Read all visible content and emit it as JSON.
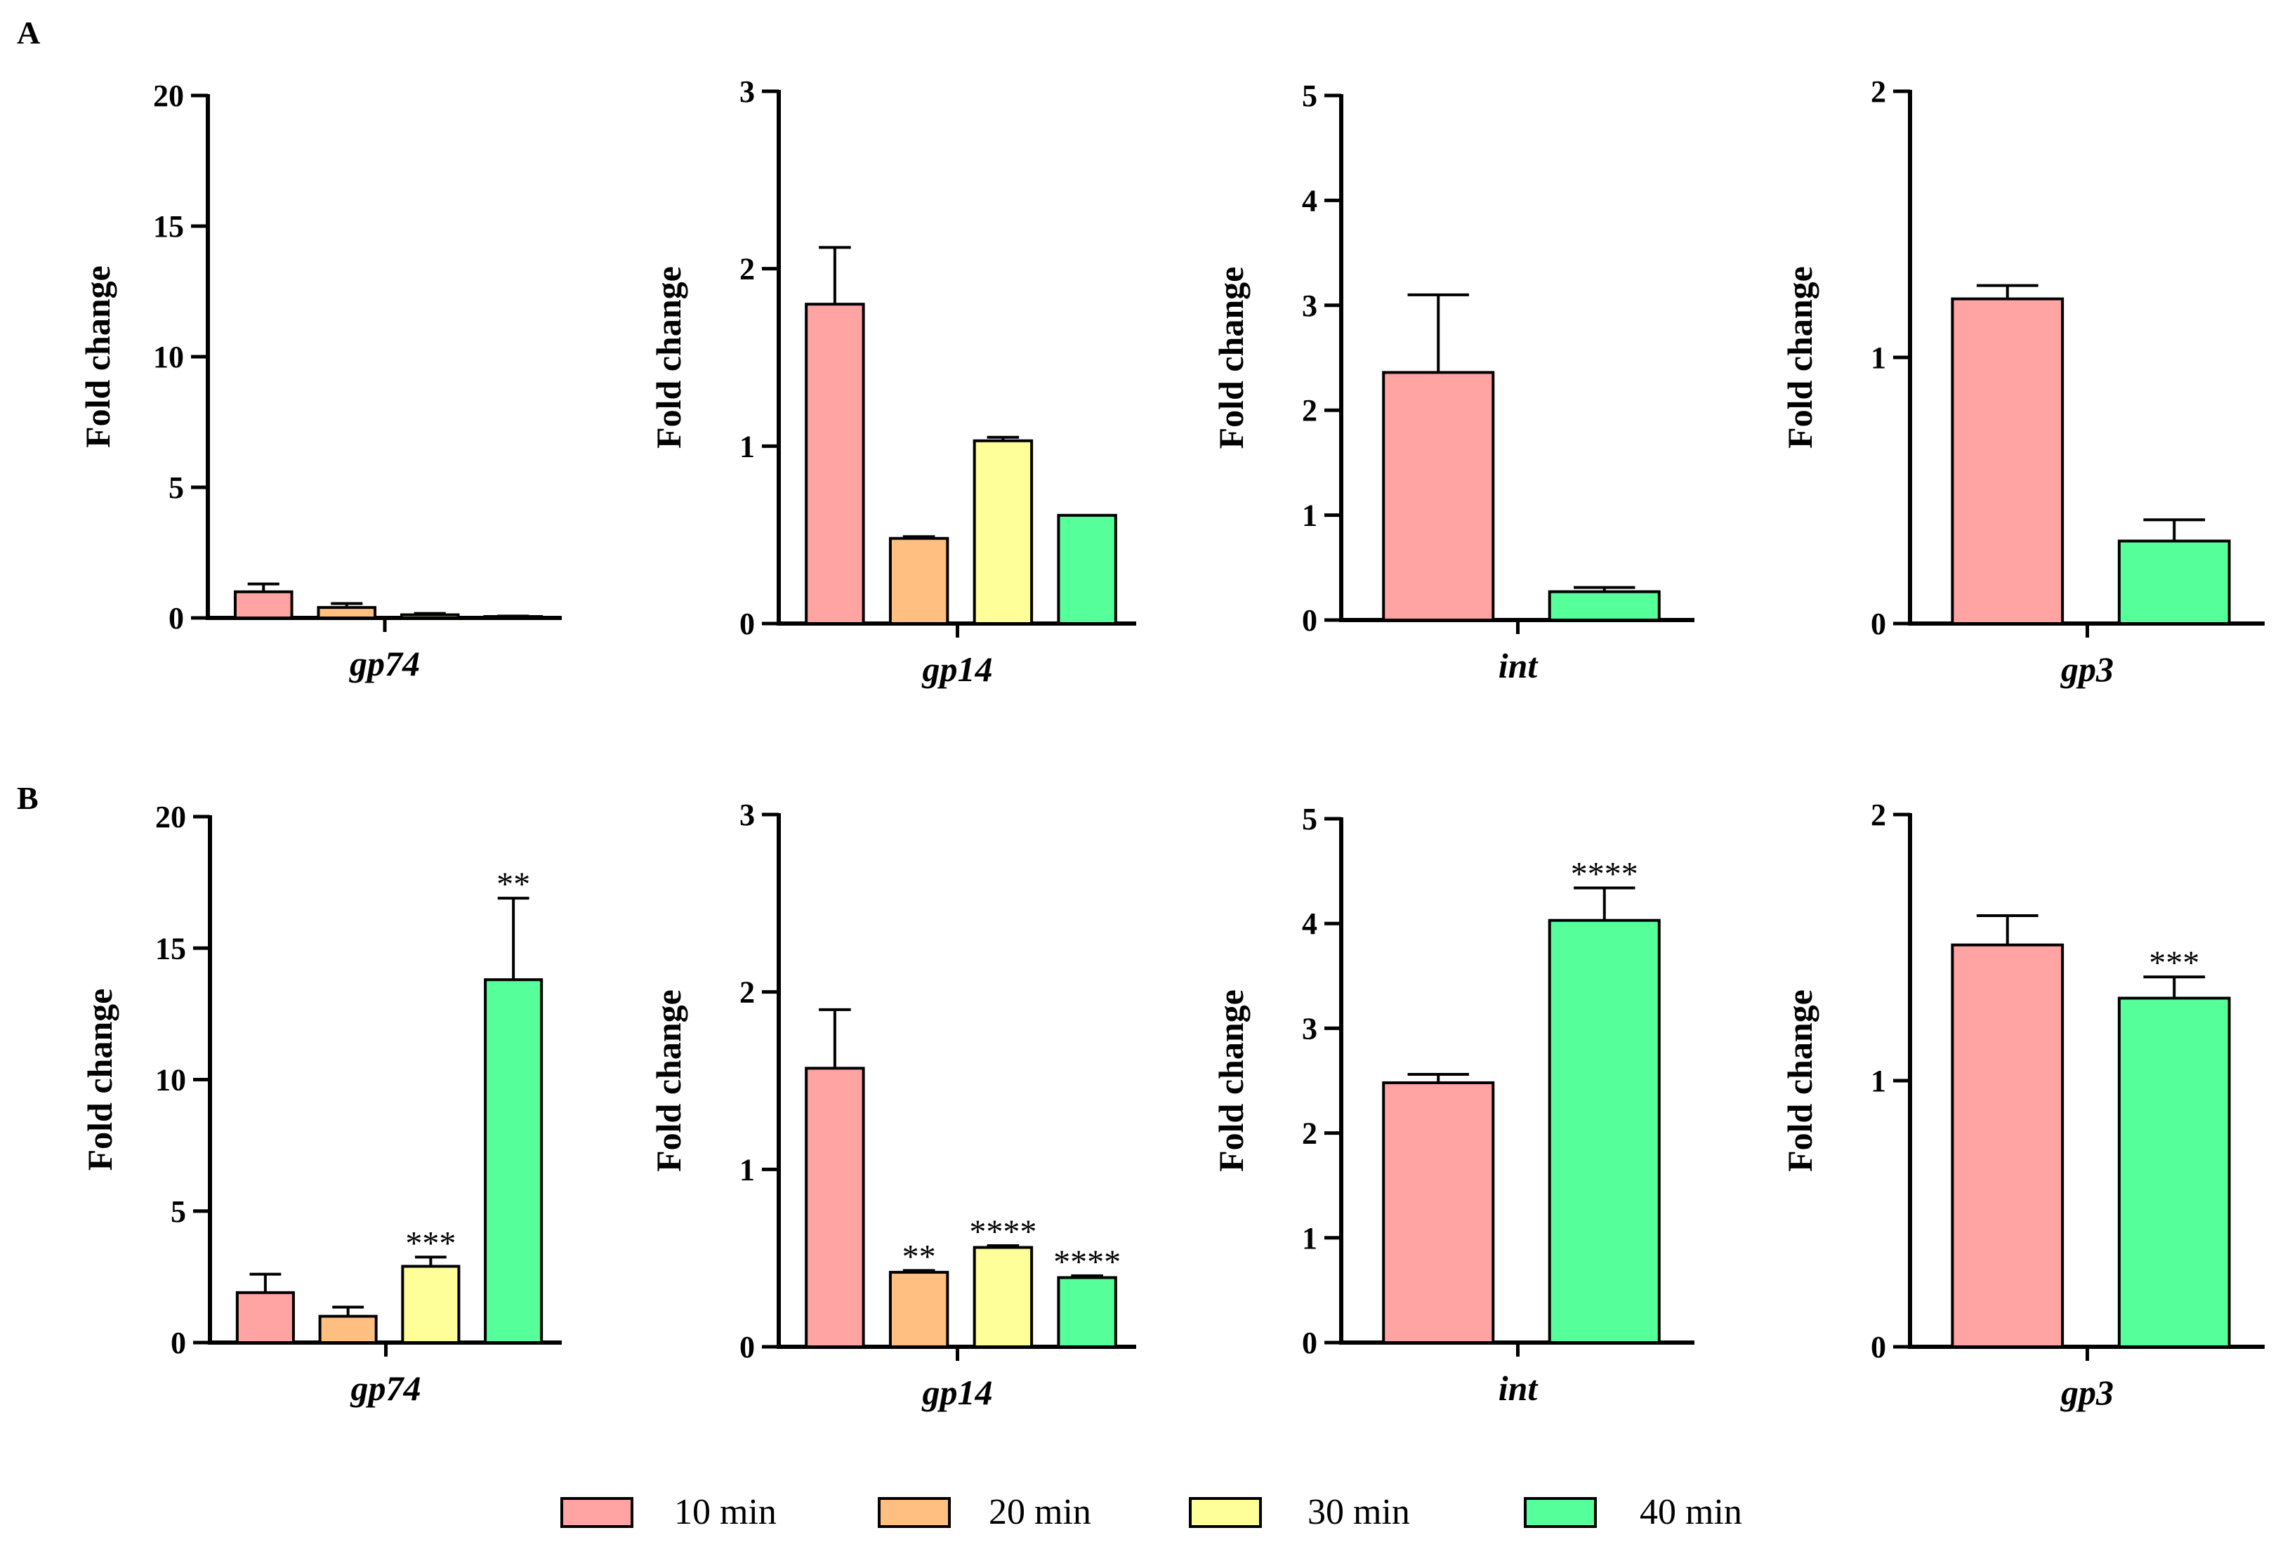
{
  "figure": {
    "panel_labels": [
      "A",
      "B"
    ]
  },
  "legend": {
    "items": [
      {
        "label": "10 min",
        "color": "#FFA3A3"
      },
      {
        "label": "20 min",
        "color": "#FFBF80"
      },
      {
        "label": "30 min",
        "color": "#FFFF99"
      },
      {
        "label": "40 min",
        "color": "#55FF99"
      }
    ]
  },
  "chart_data": [
    {
      "panel": "A",
      "type": "bar",
      "title": "",
      "xlabel": "gp74",
      "ylabel": "Fold change",
      "ylim": [
        0,
        20
      ],
      "yticks": [
        0,
        5,
        10,
        15,
        20
      ],
      "series": [
        {
          "name": "10 min",
          "value": 1.0,
          "error": 0.3,
          "sig": ""
        },
        {
          "name": "20 min",
          "value": 0.4,
          "error": 0.15,
          "sig": ""
        },
        {
          "name": "30 min",
          "value": 0.12,
          "error": 0.05,
          "sig": ""
        },
        {
          "name": "40 min",
          "value": 0.05,
          "error": 0.02,
          "sig": ""
        }
      ]
    },
    {
      "panel": "A",
      "type": "bar",
      "title": "",
      "xlabel": "gp14",
      "ylabel": "Fold change",
      "ylim": [
        0,
        3
      ],
      "yticks": [
        0,
        1,
        2,
        3
      ],
      "series": [
        {
          "name": "10 min",
          "value": 1.8,
          "error": 0.32,
          "sig": ""
        },
        {
          "name": "20 min",
          "value": 0.48,
          "error": 0.01,
          "sig": ""
        },
        {
          "name": "30 min",
          "value": 1.03,
          "error": 0.02,
          "sig": ""
        },
        {
          "name": "40 min",
          "value": 0.61,
          "error": 0.0,
          "sig": ""
        }
      ]
    },
    {
      "panel": "A",
      "type": "bar",
      "title": "",
      "xlabel": "int",
      "ylabel": "Fold change",
      "ylim": [
        0,
        5
      ],
      "yticks": [
        0,
        1,
        2,
        3,
        4,
        5
      ],
      "series": [
        {
          "name": "10 min",
          "value": 2.36,
          "error": 0.74,
          "sig": ""
        },
        {
          "name": "40 min",
          "value": 0.27,
          "error": 0.04,
          "sig": ""
        }
      ]
    },
    {
      "panel": "A",
      "type": "bar",
      "title": "",
      "xlabel": "gp3",
      "ylabel": "Fold change",
      "ylim": [
        0,
        2
      ],
      "yticks": [
        0,
        1,
        2
      ],
      "series": [
        {
          "name": "10 min",
          "value": 1.22,
          "error": 0.05,
          "sig": ""
        },
        {
          "name": "40 min",
          "value": 0.31,
          "error": 0.08,
          "sig": ""
        }
      ]
    },
    {
      "panel": "B",
      "type": "bar",
      "title": "",
      "xlabel": "gp74",
      "ylabel": "Fold change",
      "ylim": [
        0,
        20
      ],
      "yticks": [
        0,
        5,
        10,
        15,
        20
      ],
      "series": [
        {
          "name": "10 min",
          "value": 1.9,
          "error": 0.7,
          "sig": ""
        },
        {
          "name": "20 min",
          "value": 1.0,
          "error": 0.35,
          "sig": ""
        },
        {
          "name": "30 min",
          "value": 2.9,
          "error": 0.35,
          "sig": "***"
        },
        {
          "name": "40 min",
          "value": 13.8,
          "error": 3.1,
          "sig": "**"
        }
      ]
    },
    {
      "panel": "B",
      "type": "bar",
      "title": "",
      "xlabel": "gp14",
      "ylabel": "Fold change",
      "ylim": [
        0,
        3
      ],
      "yticks": [
        0,
        1,
        2,
        3
      ],
      "series": [
        {
          "name": "10 min",
          "value": 1.57,
          "error": 0.33,
          "sig": ""
        },
        {
          "name": "20 min",
          "value": 0.42,
          "error": 0.01,
          "sig": "**"
        },
        {
          "name": "30 min",
          "value": 0.56,
          "error": 0.01,
          "sig": "****"
        },
        {
          "name": "40 min",
          "value": 0.39,
          "error": 0.01,
          "sig": "****"
        }
      ]
    },
    {
      "panel": "B",
      "type": "bar",
      "title": "",
      "xlabel": "int",
      "ylabel": "Fold change",
      "ylim": [
        0,
        5
      ],
      "yticks": [
        0,
        1,
        2,
        3,
        4,
        5
      ],
      "series": [
        {
          "name": "10 min",
          "value": 2.48,
          "error": 0.08,
          "sig": ""
        },
        {
          "name": "40 min",
          "value": 4.03,
          "error": 0.31,
          "sig": "****"
        }
      ]
    },
    {
      "panel": "B",
      "type": "bar",
      "title": "",
      "xlabel": "gp3",
      "ylabel": "Fold change",
      "ylim": [
        0,
        2
      ],
      "yticks": [
        0,
        1,
        2
      ],
      "series": [
        {
          "name": "10 min",
          "value": 1.51,
          "error": 0.11,
          "sig": ""
        },
        {
          "name": "40 min",
          "value": 1.31,
          "error": 0.08,
          "sig": "***"
        }
      ]
    }
  ]
}
